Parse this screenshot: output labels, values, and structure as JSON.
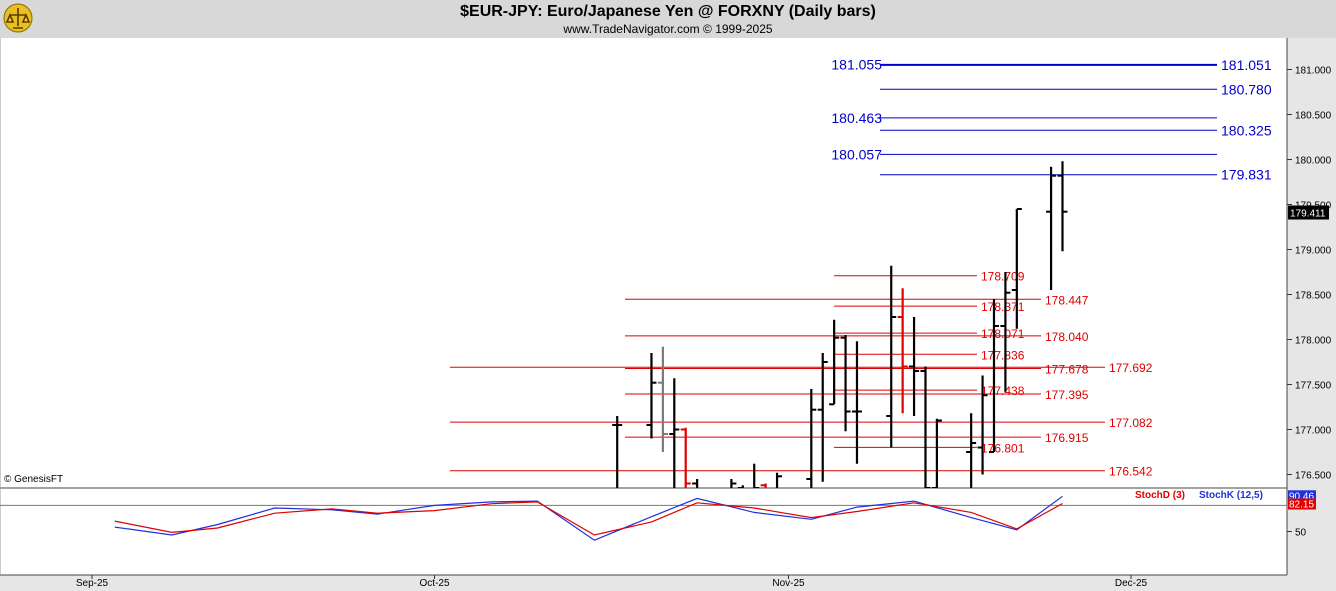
{
  "title": "$EUR-JPY:  Euro/Japanese Yen @ FORXNY  (Daily bars)",
  "subtitle": "www.TradeNavigator.com © 1999-2025",
  "copyright": "© GenesisFT",
  "colors": {
    "bar": "#000000",
    "bar_up": "#7a7a7a",
    "bar_red": "#e00000",
    "blue_line": "#0000cc",
    "red_line": "#dd0000",
    "stoch_d": "#e00000",
    "stoch_k": "#2030dd",
    "header": "#d8d8d8"
  },
  "chart_data": [
    {
      "type": "ohlc",
      "title": "$EUR-JPY:  Euro/Japanese Yen @ FORXNY  (Daily bars)",
      "y_axis_side": "right",
      "ylim": [
        176.35,
        181.35
      ],
      "y_ticks": [
        "181.000",
        "180.500",
        "180.000",
        "179.500",
        "179.000",
        "178.500",
        "178.000",
        "177.500",
        "177.000",
        "176.500"
      ],
      "last_price": "179.411",
      "x_ticks": [
        "Sep-25",
        "Oct-25",
        "Nov-25",
        "Dec-25"
      ],
      "bars": [
        {
          "date": "Oct-17",
          "high": 177.15,
          "low": 176.3,
          "open": 177.05,
          "close": 177.05,
          "color": "black"
        },
        {
          "date": "Oct-20",
          "high": 177.85,
          "low": 176.9,
          "open": 177.05,
          "close": 177.52,
          "color": "black"
        },
        {
          "date": "Oct-21",
          "high": 177.92,
          "low": 176.75,
          "open": 177.52,
          "close": 176.95,
          "color": "gray"
        },
        {
          "date": "Oct-22",
          "high": 177.57,
          "low": 176.3,
          "open": 176.95,
          "close": 177.0,
          "color": "black"
        },
        {
          "date": "Oct-23",
          "high": 177.02,
          "low": 176.3,
          "open": 177.0,
          "close": 176.4,
          "color": "red"
        },
        {
          "date": "Oct-24",
          "high": 176.45,
          "low": 176.3,
          "open": 176.4,
          "close": 176.3,
          "color": "black"
        },
        {
          "date": "Oct-27",
          "high": 176.45,
          "low": 176.3,
          "open": 176.3,
          "close": 176.4,
          "color": "black"
        },
        {
          "date": "Oct-28",
          "high": 176.38,
          "low": 176.3,
          "open": 176.35,
          "close": 176.3,
          "color": "black"
        },
        {
          "date": "Oct-29",
          "high": 176.62,
          "low": 176.3,
          "open": 176.3,
          "close": 176.35,
          "color": "black"
        },
        {
          "date": "Oct-30",
          "high": 176.4,
          "low": 176.3,
          "open": 176.38,
          "close": 176.32,
          "color": "red"
        },
        {
          "date": "Oct-31",
          "high": 176.52,
          "low": 176.3,
          "open": 176.32,
          "close": 176.48,
          "color": "black"
        },
        {
          "date": "Nov-03",
          "high": 177.45,
          "low": 176.35,
          "open": 176.45,
          "close": 177.22,
          "color": "black"
        },
        {
          "date": "Nov-04",
          "high": 177.85,
          "low": 176.42,
          "open": 177.22,
          "close": 177.75,
          "color": "black"
        },
        {
          "date": "Nov-05",
          "high": 178.22,
          "low": 177.28,
          "open": 177.28,
          "close": 178.02,
          "color": "black"
        },
        {
          "date": "Nov-06",
          "high": 178.05,
          "low": 176.98,
          "open": 178.02,
          "close": 177.2,
          "color": "black"
        },
        {
          "date": "Nov-07",
          "high": 177.98,
          "low": 176.62,
          "open": 177.2,
          "close": 177.2,
          "color": "black"
        },
        {
          "date": "Nov-10",
          "high": 178.82,
          "low": 176.8,
          "open": 177.15,
          "close": 178.25,
          "color": "black"
        },
        {
          "date": "Nov-11",
          "high": 178.57,
          "low": 177.18,
          "open": 178.25,
          "close": 177.7,
          "color": "red"
        },
        {
          "date": "Nov-12",
          "high": 178.25,
          "low": 177.15,
          "open": 177.7,
          "close": 177.65,
          "color": "black"
        },
        {
          "date": "Nov-13",
          "high": 177.7,
          "low": 176.3,
          "open": 177.65,
          "close": 176.35,
          "color": "black"
        },
        {
          "date": "Nov-14",
          "high": 177.12,
          "low": 176.3,
          "open": 176.35,
          "close": 177.1,
          "color": "black"
        },
        {
          "date": "Nov-17",
          "high": 177.18,
          "low": 176.3,
          "open": 176.75,
          "close": 176.85,
          "color": "black"
        },
        {
          "date": "Nov-18",
          "high": 177.6,
          "low": 176.5,
          "open": 176.8,
          "close": 177.38,
          "color": "black"
        },
        {
          "date": "Nov-19",
          "high": 178.45,
          "low": 176.75,
          "open": 176.75,
          "close": 178.15,
          "color": "black"
        },
        {
          "date": "Nov-20",
          "high": 178.75,
          "low": 177.42,
          "open": 178.15,
          "close": 178.52,
          "color": "black"
        },
        {
          "date": "Nov-21",
          "high": 179.45,
          "low": 178.12,
          "open": 178.55,
          "close": 179.45,
          "color": "black"
        },
        {
          "date": "Nov-24",
          "high": 179.92,
          "low": 178.55,
          "open": 179.42,
          "close": 179.82,
          "color": "black"
        },
        {
          "date": "Nov-25",
          "high": 179.98,
          "low": 178.98,
          "open": 179.82,
          "close": 179.42,
          "color": "black"
        }
      ],
      "levels": [
        {
          "value": 181.055,
          "label": "181.055",
          "color": "blue",
          "label_side": "left"
        },
        {
          "value": 181.051,
          "label": "181.051",
          "color": "blue",
          "label_side": "right"
        },
        {
          "value": 180.78,
          "label": "180.780",
          "color": "blue",
          "label_side": "right"
        },
        {
          "value": 180.463,
          "label": "180.463",
          "color": "blue",
          "label_side": "left"
        },
        {
          "value": 180.325,
          "label": "180.325",
          "color": "blue",
          "label_side": "right"
        },
        {
          "value": 180.057,
          "label": "180.057",
          "color": "blue",
          "label_side": "left"
        },
        {
          "value": 179.831,
          "label": "179.831",
          "color": "blue",
          "label_side": "right"
        },
        {
          "value": 178.709,
          "label": "178.709",
          "color": "red"
        },
        {
          "value": 178.447,
          "label": "178.447",
          "color": "red"
        },
        {
          "value": 178.371,
          "label": "178.371",
          "color": "red"
        },
        {
          "value": 178.071,
          "label": "178.071",
          "color": "red"
        },
        {
          "value": 178.04,
          "label": "178.040",
          "color": "red"
        },
        {
          "value": 177.836,
          "label": "177.836",
          "color": "red"
        },
        {
          "value": 177.678,
          "label": "177.678",
          "color": "red"
        },
        {
          "value": 177.692,
          "label": "177.692",
          "color": "red"
        },
        {
          "value": 177.438,
          "label": "177.438",
          "color": "red"
        },
        {
          "value": 177.395,
          "label": "177.395",
          "color": "red"
        },
        {
          "value": 177.082,
          "label": "177.082",
          "color": "red"
        },
        {
          "value": 176.915,
          "label": "176.915",
          "color": "red"
        },
        {
          "value": 176.801,
          "label": "176.801",
          "color": "red"
        },
        {
          "value": 176.542,
          "label": "176.542",
          "color": "red"
        }
      ]
    },
    {
      "type": "line",
      "title": "",
      "ylim": [
        0,
        100
      ],
      "y_ticks": [
        "50"
      ],
      "reference_line": 80,
      "legend": [
        "StochD (3)",
        "StochK (12,5)"
      ],
      "last_values": {
        "k": "90.46",
        "d": "82.15"
      },
      "x": [
        "Sep-03",
        "Sep-08",
        "Sep-12",
        "Sep-17",
        "Sep-22",
        "Sep-26",
        "Oct-01",
        "Oct-06",
        "Oct-10",
        "Oct-15",
        "Oct-20",
        "Oct-24",
        "Oct-29",
        "Nov-03",
        "Nov-07",
        "Nov-12",
        "Nov-17",
        "Nov-21",
        "Nov-25"
      ],
      "series": [
        {
          "name": "StochK (12,5)",
          "values": [
            55,
            46,
            58,
            77,
            75,
            70,
            80,
            84,
            85,
            40,
            67,
            88,
            72,
            64,
            78,
            85,
            66,
            52,
            90.46
          ]
        },
        {
          "name": "StochD (3)",
          "values": [
            62,
            49,
            54,
            71,
            76,
            71,
            74,
            82,
            84,
            46,
            61,
            83,
            77,
            66,
            73,
            83,
            72,
            53,
            82.15
          ]
        }
      ]
    }
  ]
}
